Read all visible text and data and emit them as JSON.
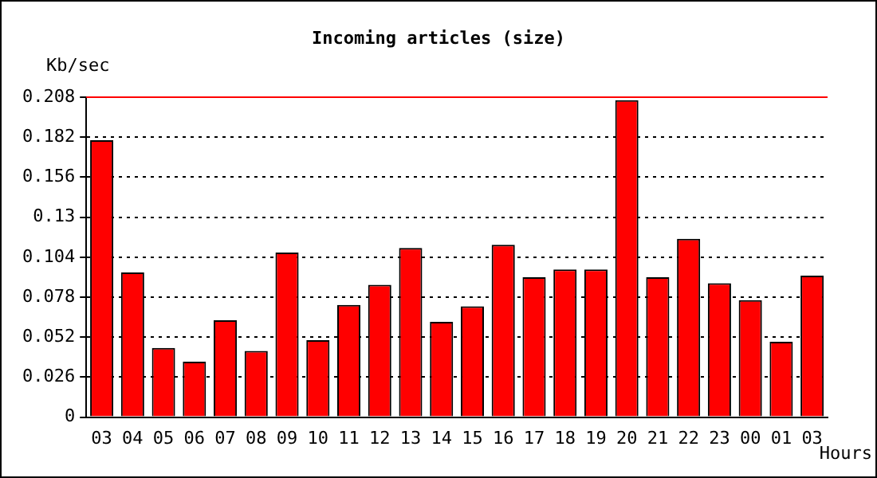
{
  "chart_data": {
    "type": "bar",
    "title": "Incoming articles (size)",
    "xlabel": "Hours",
    "ylabel": "Kb/sec",
    "categories": [
      "03",
      "04",
      "05",
      "06",
      "07",
      "08",
      "09",
      "10",
      "11",
      "12",
      "13",
      "14",
      "15",
      "16",
      "17",
      "18",
      "19",
      "20",
      "21",
      "22",
      "23",
      "00",
      "01",
      "03"
    ],
    "values": [
      0.18,
      0.094,
      0.045,
      0.036,
      0.063,
      0.043,
      0.107,
      0.05,
      0.073,
      0.086,
      0.11,
      0.062,
      0.072,
      0.112,
      0.091,
      0.096,
      0.096,
      0.206,
      0.091,
      0.116,
      0.087,
      0.076,
      0.049,
      0.092
    ],
    "color": "#ff0000",
    "ylim": [
      0,
      0.208
    ],
    "yticks": [
      0,
      0.026,
      0.052,
      0.078,
      0.104,
      0.13,
      0.156,
      0.182,
      0.208
    ],
    "grid": "y",
    "ref_lines": [
      {
        "axis": "y",
        "value": 0.208,
        "color": "#ff0000"
      }
    ]
  }
}
